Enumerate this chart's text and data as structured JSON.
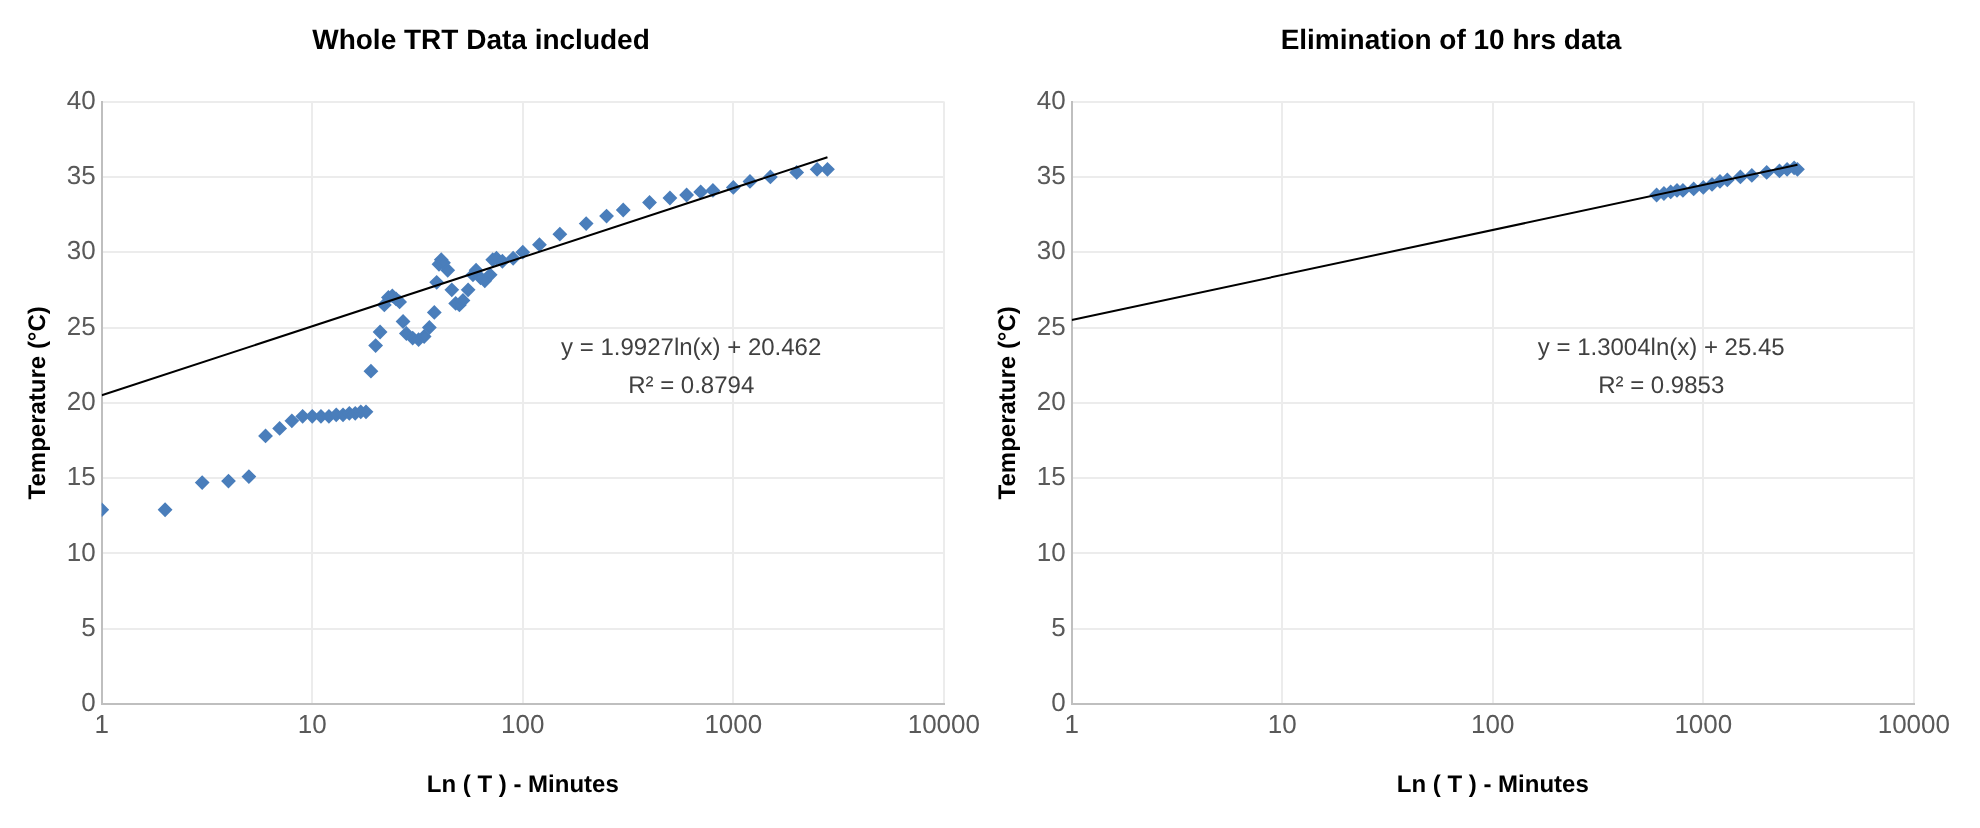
{
  "chart_data": [
    {
      "type": "scatter",
      "title": "Whole TRT Data included",
      "xlabel": "Ln ( T ) - Minutes",
      "ylabel": "Temperature (°C)",
      "log": "x",
      "xlim": [
        1,
        10000
      ],
      "xticks": [
        1,
        10,
        100,
        1000,
        10000
      ],
      "ylim": [
        0,
        40
      ],
      "yticks": [
        0,
        5,
        10,
        15,
        20,
        25,
        30,
        35,
        40
      ],
      "grid": true,
      "legend": false,
      "annotations": [
        "y = 1.9927ln(x) + 20.462",
        "R² = 0.8794"
      ],
      "series": [
        {
          "type": "scatter",
          "marker": "diamond",
          "color": "#4a7ebb",
          "x": [
            1,
            2,
            3,
            4,
            5,
            6,
            7,
            8,
            9,
            10,
            11,
            12,
            13,
            14,
            15,
            16,
            17,
            18,
            19,
            20,
            21,
            22,
            23,
            24,
            25,
            26,
            27,
            28,
            30,
            32,
            34,
            36,
            38,
            39,
            40,
            41,
            42,
            44,
            46,
            48,
            50,
            52,
            55,
            58,
            60,
            63,
            66,
            70,
            72,
            75,
            80,
            90,
            100,
            120,
            150,
            200,
            250,
            300,
            400,
            500,
            600,
            700,
            800,
            1000,
            1200,
            1500,
            2000,
            2500,
            2800
          ],
          "values": [
            12.9,
            12.9,
            14.7,
            14.8,
            15.1,
            17.8,
            18.3,
            18.8,
            19.1,
            19.1,
            19.1,
            19.1,
            19.2,
            19.2,
            19.3,
            19.3,
            19.4,
            19.4,
            22.1,
            23.8,
            24.7,
            26.5,
            27.0,
            27.1,
            26.9,
            26.7,
            25.4,
            24.6,
            24.3,
            24.2,
            24.4,
            25.0,
            26.0,
            28.0,
            29.2,
            29.5,
            29.3,
            28.8,
            27.5,
            26.6,
            26.5,
            26.8,
            27.5,
            28.5,
            28.8,
            28.3,
            28.1,
            28.5,
            29.5,
            29.6,
            29.4,
            29.6,
            30.0,
            30.5,
            31.2,
            31.9,
            32.4,
            32.8,
            33.3,
            33.6,
            33.8,
            34.0,
            34.1,
            34.3,
            34.7,
            35.0,
            35.3,
            35.5,
            35.5
          ]
        },
        {
          "type": "line",
          "color": "#000000",
          "line_style": "solid",
          "x": [
            1,
            2800
          ],
          "values": [
            20.5,
            36.3
          ]
        }
      ]
    },
    {
      "type": "scatter",
      "title": "Elimination of 10 hrs data",
      "xlabel": "Ln ( T ) - Minutes",
      "ylabel": "Temperature (°C)",
      "log": "x",
      "xlim": [
        1,
        10000
      ],
      "xticks": [
        1,
        10,
        100,
        1000,
        10000
      ],
      "ylim": [
        0,
        40
      ],
      "yticks": [
        0,
        5,
        10,
        15,
        20,
        25,
        30,
        35,
        40
      ],
      "grid": true,
      "legend": false,
      "annotations": [
        "y = 1.3004ln(x) + 25.45",
        "R² = 0.9853"
      ],
      "series": [
        {
          "type": "scatter",
          "marker": "diamond",
          "color": "#4a7ebb",
          "x": [
            600,
            650,
            700,
            750,
            800,
            900,
            1000,
            1100,
            1200,
            1300,
            1500,
            1700,
            2000,
            2300,
            2500,
            2700,
            2800
          ],
          "values": [
            33.8,
            33.9,
            34.0,
            34.1,
            34.1,
            34.2,
            34.3,
            34.5,
            34.7,
            34.8,
            35.0,
            35.1,
            35.3,
            35.4,
            35.5,
            35.6,
            35.5
          ]
        },
        {
          "type": "line",
          "color": "#000000",
          "line_style": "solid",
          "x": [
            1,
            2800
          ],
          "values": [
            25.5,
            35.8
          ]
        }
      ]
    }
  ]
}
